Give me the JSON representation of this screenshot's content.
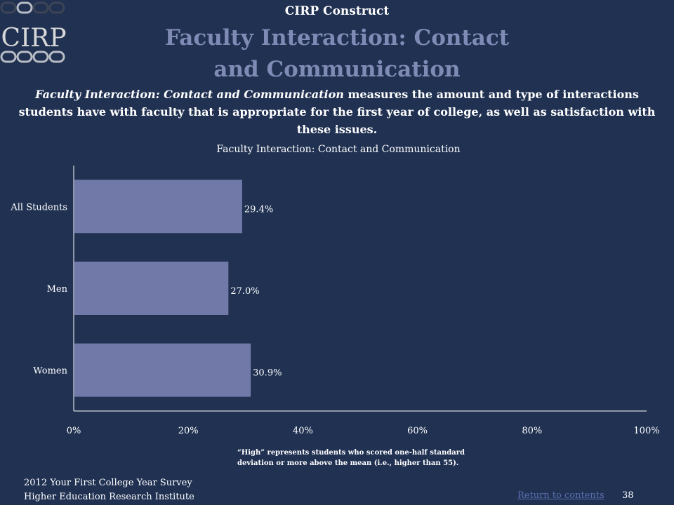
{
  "logo": {
    "text": "CIRP",
    "icon": "cirp-rounded-blocks-logo",
    "dark_color": "#3c4555",
    "light_color": "#b8bcc4",
    "text_color": "#d8d8d8"
  },
  "header": {
    "construct_label": "CIRP Construct",
    "title": "Faculty Interaction: Contact and Communication"
  },
  "description": {
    "italic_lead": "Faculty Interaction: Contact and Communication",
    "rest": " measures the amount and type of interactions students have with faculty that is appropriate for the first year of college, as well as satisfaction with these issues."
  },
  "chart_data": {
    "type": "bar",
    "orientation": "horizontal",
    "title": "Faculty Interaction: Contact and Communication",
    "categories": [
      "All Students",
      "Men",
      "Women"
    ],
    "values": [
      29.4,
      27.0,
      30.9
    ],
    "value_labels": [
      "29.4%",
      "27.0%",
      "30.9%"
    ],
    "xlim": [
      0,
      100
    ],
    "x_ticks": [
      "0%",
      "20%",
      "40%",
      "60%",
      "80%",
      "100%"
    ],
    "xlabel": "",
    "ylabel": "",
    "grid": false,
    "legend": "none",
    "bar_color": "#7079a8"
  },
  "footnote": "“High” represents students who scored one-half standard deviation or more above the mean (i.e., higher than 55).",
  "footer": {
    "survey": "2012 Your First College Year Survey",
    "institute": "Higher Education Research Institute",
    "return_link": "Return to contents",
    "page_number": "38"
  }
}
